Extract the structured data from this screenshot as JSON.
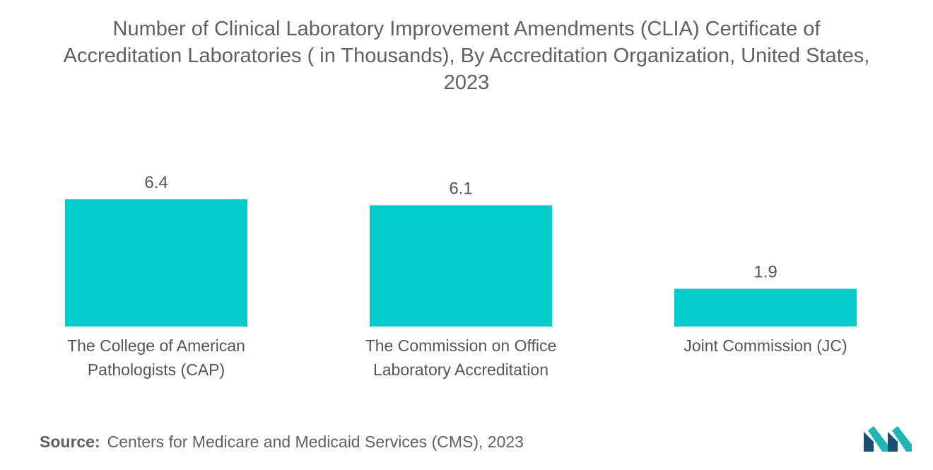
{
  "title_lines": [
    "Number of Clinical Laboratory Improvement Amendments (CLIA) Certificate of",
    "Accreditation Laboratories ( in Thousands), By Accreditation Organization, United States,",
    "2023"
  ],
  "source": {
    "label": "Source:",
    "text": "Centers for Medicare and Medicaid Services (CMS), 2023"
  },
  "colors": {
    "bar": "#00CCCC",
    "logo_dark": "#1B4F72",
    "logo_teal": "#1FB5B5"
  },
  "chart_data": {
    "type": "bar",
    "categories": [
      [
        "The College of American",
        "Pathologists (CAP)"
      ],
      [
        "The Commission on Office",
        "Laboratory Accreditation"
      ],
      [
        "Joint Commission (JC)"
      ]
    ],
    "values": [
      6.4,
      6.1,
      1.9
    ],
    "value_labels": [
      "6.4",
      "6.1",
      "1.9"
    ],
    "ylim": [
      0,
      6.4
    ],
    "grid": false,
    "legend": "none"
  }
}
